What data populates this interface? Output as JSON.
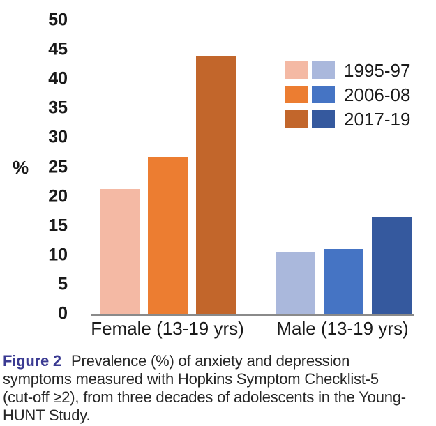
{
  "chart_data": {
    "type": "bar",
    "title": "",
    "xlabel": "",
    "ylabel": "%",
    "ylim": [
      0,
      50
    ],
    "yticks": [
      0,
      5,
      10,
      15,
      20,
      25,
      30,
      35,
      40,
      45,
      50
    ],
    "grid": false,
    "legend_position": "upper-right-inside",
    "categories": [
      "Female (13-19 yrs)",
      "Male (13-19 yrs)"
    ],
    "series": [
      {
        "name": "1995-97",
        "values": [
          21.3,
          10.5
        ],
        "female_color": "#F4B9A4",
        "male_color": "#AAB8DC"
      },
      {
        "name": "2006-08",
        "values": [
          26.7,
          11.0
        ],
        "female_color": "#EC7D31",
        "male_color": "#4574C4"
      },
      {
        "name": "2017-19",
        "values": [
          43.9,
          16.5
        ],
        "female_color": "#C2662B",
        "male_color": "#35599E"
      }
    ],
    "colors": {
      "axis_line": "#8A8A8A",
      "tick_text": "#1A1A1A"
    }
  },
  "caption": {
    "figure_label": "Figure 2",
    "figure_label_color": "#3A3A92",
    "lines": [
      "Prevalence (%) of anxiety and depression",
      "symptoms measured with Hopkins Symptom Checklist-5",
      "(cut-off ≥2), from three decades of adolescents in the Young-",
      "HUNT Study."
    ]
  }
}
